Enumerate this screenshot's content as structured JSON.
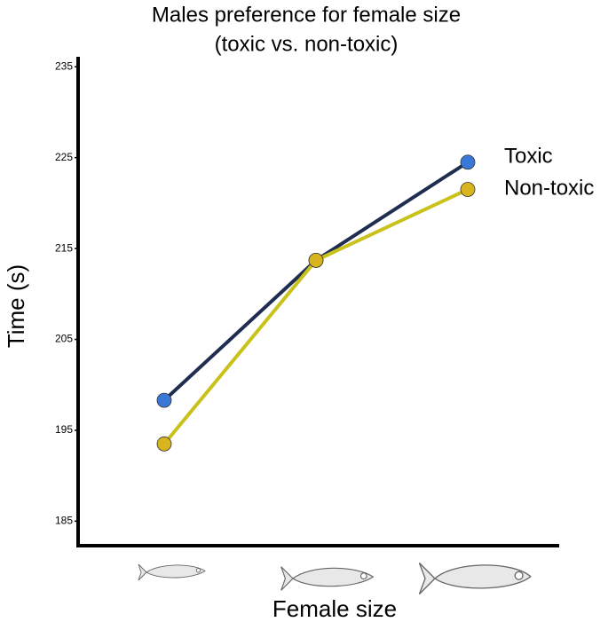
{
  "chart_data": {
    "type": "line",
    "title": [
      "Males preference for female size",
      "(toxic vs. non-toxic)"
    ],
    "x_label": "Female size",
    "y_label": "Time (s)",
    "categories": [
      null,
      null,
      null
    ],
    "series": [
      {
        "name": "Toxic",
        "color": "#1f2d50",
        "marker_color": "#3a78d8",
        "values": [
          198.3,
          213.7,
          224.5
        ]
      },
      {
        "name": "Non-toxic",
        "color": "#c8c21a",
        "marker_color": "#d8b41e",
        "values": [
          193.5,
          213.7,
          221.5
        ]
      }
    ],
    "ylim": [
      182.3,
      236
    ],
    "yticks": [
      185,
      195,
      205,
      215,
      225,
      235
    ],
    "grid": false,
    "legend": "right"
  }
}
